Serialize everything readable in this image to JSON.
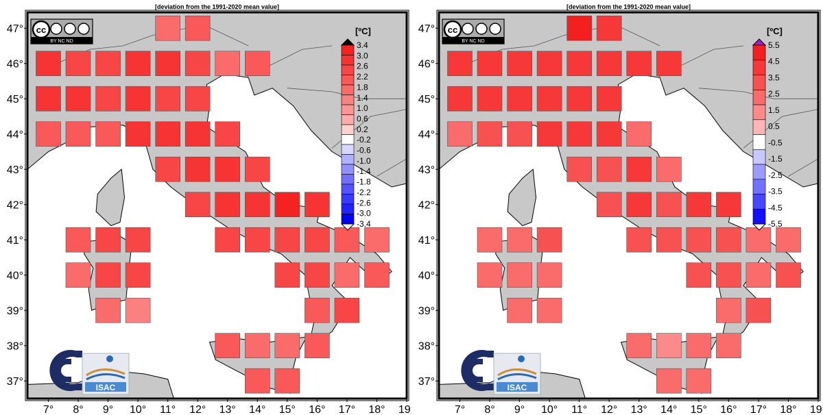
{
  "panels": [
    {
      "title": "[deviation from the 1991-2020 mean value]",
      "unit": "[ºC]",
      "colorbar_labels": [
        "3.4",
        "3.0",
        "2.6",
        "2.2",
        "1.8",
        "1.4",
        "1.0",
        "0.6",
        "0.2",
        "-0.2",
        "-0.6",
        "-1.0",
        "-1.4",
        "-1.8",
        "-2.2",
        "-2.6",
        "-3.0",
        "-3.4"
      ],
      "colorbar_colors": [
        "#f52222",
        "#f73434",
        "#f84646",
        "#f95959",
        "#fa6c6c",
        "#fb8080",
        "#fc9595",
        "#fdacac",
        "#fed0d0",
        "#ffffff",
        "#d6d6ff",
        "#b1b1ff",
        "#9090ff",
        "#7171ff",
        "#5454ff",
        "#3a3aff",
        "#2222ff",
        "#0000f5"
      ],
      "over_color": "#000000",
      "cells": [
        {
          "lon": 11,
          "lat": 47,
          "v": 1.8
        },
        {
          "lon": 12,
          "lat": 47,
          "v": 2.1
        },
        {
          "lon": 7,
          "lat": 46,
          "v": 2.7
        },
        {
          "lon": 8,
          "lat": 46,
          "v": 2.6
        },
        {
          "lon": 9,
          "lat": 46,
          "v": 2.6
        },
        {
          "lon": 10,
          "lat": 46,
          "v": 2.7
        },
        {
          "lon": 11,
          "lat": 46,
          "v": 2.7
        },
        {
          "lon": 12,
          "lat": 46,
          "v": 2.4
        },
        {
          "lon": 13,
          "lat": 46,
          "v": 1.6
        },
        {
          "lon": 14,
          "lat": 46,
          "v": 2.0
        },
        {
          "lon": 7,
          "lat": 45,
          "v": 2.7
        },
        {
          "lon": 8,
          "lat": 45,
          "v": 2.8
        },
        {
          "lon": 9,
          "lat": 45,
          "v": 2.6
        },
        {
          "lon": 10,
          "lat": 45,
          "v": 2.7
        },
        {
          "lon": 11,
          "lat": 45,
          "v": 2.6
        },
        {
          "lon": 12,
          "lat": 45,
          "v": 2.4
        },
        {
          "lon": 7,
          "lat": 44,
          "v": 2.0
        },
        {
          "lon": 8,
          "lat": 44,
          "v": 2.2
        },
        {
          "lon": 9,
          "lat": 44,
          "v": 2.2
        },
        {
          "lon": 10,
          "lat": 44,
          "v": 2.8
        },
        {
          "lon": 11,
          "lat": 44,
          "v": 2.9
        },
        {
          "lon": 12,
          "lat": 44,
          "v": 2.9
        },
        {
          "lon": 13,
          "lat": 44,
          "v": 2.6
        },
        {
          "lon": 11,
          "lat": 43,
          "v": 2.6
        },
        {
          "lon": 12,
          "lat": 43,
          "v": 2.7
        },
        {
          "lon": 13,
          "lat": 43,
          "v": 2.9
        },
        {
          "lon": 14,
          "lat": 43,
          "v": 2.5
        },
        {
          "lon": 12,
          "lat": 42,
          "v": 2.5
        },
        {
          "lon": 13,
          "lat": 42,
          "v": 2.8
        },
        {
          "lon": 14,
          "lat": 42,
          "v": 2.7
        },
        {
          "lon": 15,
          "lat": 42,
          "v": 3.3
        },
        {
          "lon": 16,
          "lat": 42,
          "v": 3.0
        },
        {
          "lon": 8,
          "lat": 41,
          "v": 2.0
        },
        {
          "lon": 9,
          "lat": 41,
          "v": 2.6
        },
        {
          "lon": 10,
          "lat": 41,
          "v": 2.6
        },
        {
          "lon": 13,
          "lat": 41,
          "v": 2.5
        },
        {
          "lon": 14,
          "lat": 41,
          "v": 2.4
        },
        {
          "lon": 15,
          "lat": 41,
          "v": 2.6
        },
        {
          "lon": 16,
          "lat": 41,
          "v": 2.3
        },
        {
          "lon": 17,
          "lat": 41,
          "v": 2.1
        },
        {
          "lon": 18,
          "lat": 41,
          "v": 1.8
        },
        {
          "lon": 8,
          "lat": 40,
          "v": 1.8
        },
        {
          "lon": 9,
          "lat": 40,
          "v": 2.3
        },
        {
          "lon": 10,
          "lat": 40,
          "v": 2.6
        },
        {
          "lon": 15,
          "lat": 40,
          "v": 2.4
        },
        {
          "lon": 16,
          "lat": 40,
          "v": 2.3
        },
        {
          "lon": 17,
          "lat": 40,
          "v": 1.6
        },
        {
          "lon": 18,
          "lat": 40,
          "v": 2.1
        },
        {
          "lon": 9,
          "lat": 39,
          "v": 1.8
        },
        {
          "lon": 10,
          "lat": 39,
          "v": 1.2
        },
        {
          "lon": 16,
          "lat": 39,
          "v": 2.0
        },
        {
          "lon": 17,
          "lat": 39,
          "v": 2.3
        },
        {
          "lon": 13,
          "lat": 38,
          "v": 2.0
        },
        {
          "lon": 14,
          "lat": 38,
          "v": 1.6
        },
        {
          "lon": 15,
          "lat": 38,
          "v": 1.7
        },
        {
          "lon": 16,
          "lat": 38,
          "v": 2.2
        },
        {
          "lon": 14,
          "lat": 37,
          "v": 2.0
        },
        {
          "lon": 15,
          "lat": 37,
          "v": 2.0
        }
      ]
    },
    {
      "title": "[deviation from the 1991-2020 mean value]",
      "unit": "[ºC]",
      "colorbar_labels": [
        "5.5",
        "4.5",
        "3.5",
        "2.5",
        "1.5",
        "0.5",
        "-0.5",
        "-1.5",
        "-2.5",
        "-3.5",
        "-4.5",
        "-5.5"
      ],
      "colorbar_colors": [
        "#f42020",
        "#f63838",
        "#f85151",
        "#fa6b6b",
        "#fc8a8a",
        "#feb5b5",
        "#ffffff",
        "#c8c8ff",
        "#9c9cff",
        "#7272ff",
        "#4747ff",
        "#1010ff"
      ],
      "over_color": "#a020c0",
      "cells": [
        {
          "lon": 11,
          "lat": 47,
          "v": 4.8
        },
        {
          "lon": 12,
          "lat": 47,
          "v": 4.5
        },
        {
          "lon": 7,
          "lat": 46,
          "v": 4.0
        },
        {
          "lon": 8,
          "lat": 46,
          "v": 4.0
        },
        {
          "lon": 9,
          "lat": 46,
          "v": 4.0
        },
        {
          "lon": 10,
          "lat": 46,
          "v": 4.0
        },
        {
          "lon": 11,
          "lat": 46,
          "v": 4.2
        },
        {
          "lon": 12,
          "lat": 46,
          "v": 4.2
        },
        {
          "lon": 13,
          "lat": 46,
          "v": 4.2
        },
        {
          "lon": 14,
          "lat": 46,
          "v": 4.3
        },
        {
          "lon": 7,
          "lat": 45,
          "v": 4.0
        },
        {
          "lon": 8,
          "lat": 45,
          "v": 4.0
        },
        {
          "lon": 9,
          "lat": 45,
          "v": 4.0
        },
        {
          "lon": 10,
          "lat": 45,
          "v": 4.2
        },
        {
          "lon": 11,
          "lat": 45,
          "v": 4.3
        },
        {
          "lon": 12,
          "lat": 45,
          "v": 4.3
        },
        {
          "lon": 7,
          "lat": 44,
          "v": 2.5
        },
        {
          "lon": 8,
          "lat": 44,
          "v": 2.8
        },
        {
          "lon": 9,
          "lat": 44,
          "v": 2.8
        },
        {
          "lon": 10,
          "lat": 44,
          "v": 4.0
        },
        {
          "lon": 11,
          "lat": 44,
          "v": 4.2
        },
        {
          "lon": 12,
          "lat": 44,
          "v": 4.2
        },
        {
          "lon": 13,
          "lat": 44,
          "v": 2.5
        },
        {
          "lon": 11,
          "lat": 43,
          "v": 3.0
        },
        {
          "lon": 12,
          "lat": 43,
          "v": 3.3
        },
        {
          "lon": 13,
          "lat": 43,
          "v": 3.8
        },
        {
          "lon": 14,
          "lat": 43,
          "v": 2.4
        },
        {
          "lon": 12,
          "lat": 42,
          "v": 2.8
        },
        {
          "lon": 13,
          "lat": 42,
          "v": 3.8
        },
        {
          "lon": 14,
          "lat": 42,
          "v": 3.0
        },
        {
          "lon": 15,
          "lat": 42,
          "v": 4.0
        },
        {
          "lon": 16,
          "lat": 42,
          "v": 4.0
        },
        {
          "lon": 8,
          "lat": 41,
          "v": 1.8
        },
        {
          "lon": 9,
          "lat": 41,
          "v": 2.2
        },
        {
          "lon": 10,
          "lat": 41,
          "v": 2.6
        },
        {
          "lon": 13,
          "lat": 41,
          "v": 2.8
        },
        {
          "lon": 14,
          "lat": 41,
          "v": 2.8
        },
        {
          "lon": 15,
          "lat": 41,
          "v": 3.0
        },
        {
          "lon": 16,
          "lat": 41,
          "v": 2.8
        },
        {
          "lon": 17,
          "lat": 41,
          "v": 2.4
        },
        {
          "lon": 18,
          "lat": 41,
          "v": 1.8
        },
        {
          "lon": 8,
          "lat": 40,
          "v": 1.8
        },
        {
          "lon": 9,
          "lat": 40,
          "v": 2.0
        },
        {
          "lon": 10,
          "lat": 40,
          "v": 2.5
        },
        {
          "lon": 15,
          "lat": 40,
          "v": 3.2
        },
        {
          "lon": 16,
          "lat": 40,
          "v": 3.0
        },
        {
          "lon": 17,
          "lat": 40,
          "v": 2.0
        },
        {
          "lon": 18,
          "lat": 40,
          "v": 2.8
        },
        {
          "lon": 9,
          "lat": 39,
          "v": 2.0
        },
        {
          "lon": 10,
          "lat": 39,
          "v": 2.0
        },
        {
          "lon": 16,
          "lat": 39,
          "v": 2.2
        },
        {
          "lon": 17,
          "lat": 39,
          "v": 3.2
        },
        {
          "lon": 13,
          "lat": 38,
          "v": 2.3
        },
        {
          "lon": 14,
          "lat": 38,
          "v": 1.2
        },
        {
          "lon": 15,
          "lat": 38,
          "v": 2.5
        },
        {
          "lon": 16,
          "lat": 38,
          "v": 2.5
        },
        {
          "lon": 14,
          "lat": 37,
          "v": 2.4
        },
        {
          "lon": 15,
          "lat": 37,
          "v": 2.4
        }
      ]
    }
  ],
  "x_ticks": [
    "7°",
    "8°",
    "9°",
    "10°",
    "11°",
    "12°",
    "13°",
    "14°",
    "15°",
    "16°",
    "17°",
    "18°",
    "19°"
  ],
  "y_ticks": [
    "47°",
    "46°",
    "45°",
    "44°",
    "43°",
    "42°",
    "41°",
    "40°",
    "39°",
    "38°",
    "37°"
  ],
  "logos": {
    "cc_text": "cc",
    "cc_small": "BY  NC  ND",
    "isac_text": "ISAC"
  },
  "colors": {
    "land": "#c8c8c8",
    "sea": "#ffffff",
    "frame": "#000000"
  }
}
